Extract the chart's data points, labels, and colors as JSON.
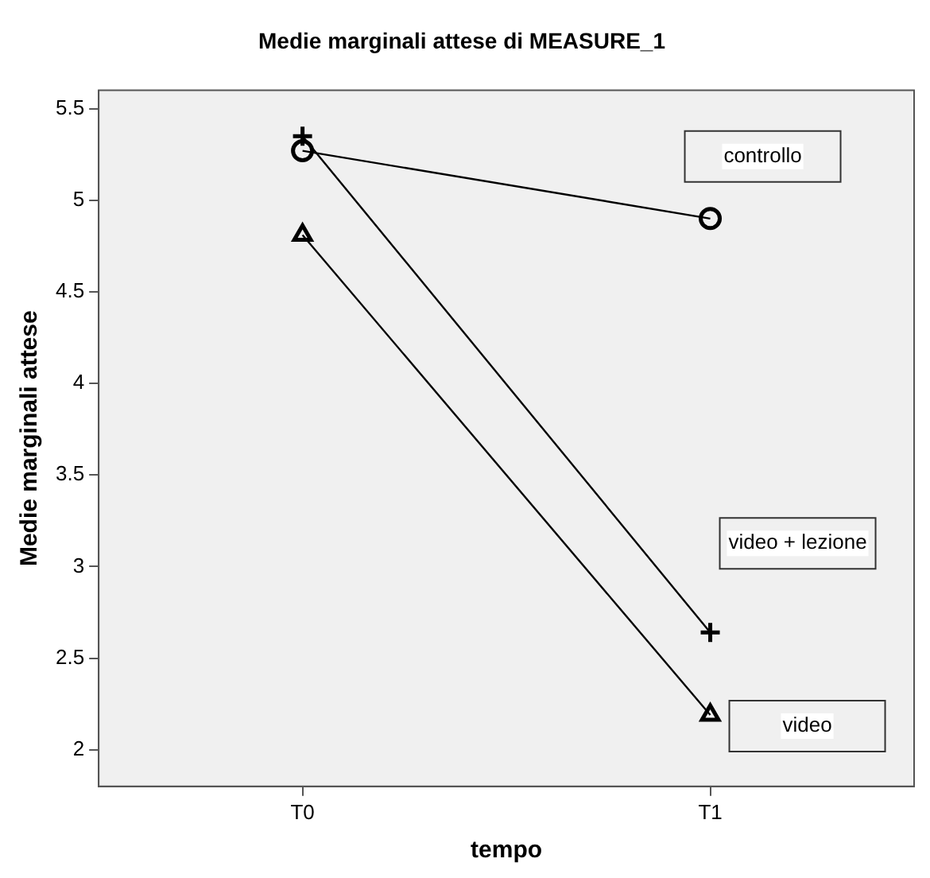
{
  "chart_data": {
    "type": "line",
    "title": "Medie marginali attese di MEASURE_1",
    "xlabel": "tempo",
    "ylabel": "Medie marginali attese",
    "categories": [
      "T0",
      "T1"
    ],
    "series": [
      {
        "name": "controllo",
        "color": "#000000",
        "marker": "circle",
        "values": [
          5.27,
          4.9
        ]
      },
      {
        "name": "video + lezione",
        "color": "#000000",
        "marker": "cross",
        "values": [
          5.35,
          2.64
        ]
      },
      {
        "name": "video",
        "color": "#000000",
        "marker": "triangle",
        "values": [
          4.81,
          2.19
        ]
      }
    ],
    "ylim": [
      1.8,
      5.6
    ],
    "yticks": [
      2,
      2.5,
      3,
      3.5,
      4,
      4.5,
      5,
      5.5
    ],
    "grid": false,
    "legend": false
  }
}
